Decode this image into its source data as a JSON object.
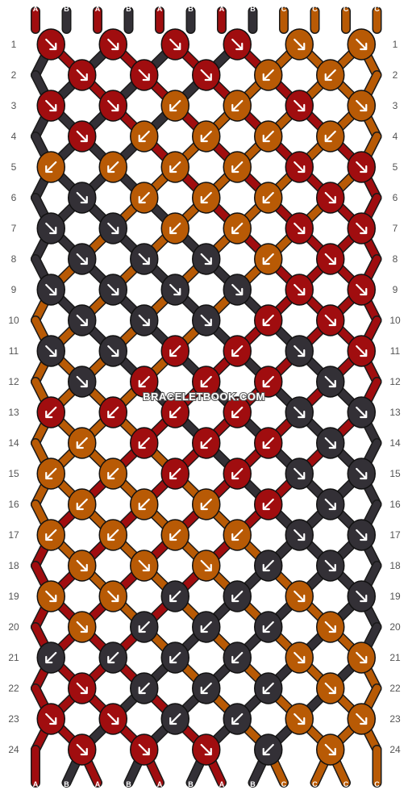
{
  "watermark": "BRACELETBOOK.COM",
  "colors": {
    "A": "#a00d0f",
    "B": "#333036",
    "C": "#b85a05"
  },
  "start_strings": [
    "A",
    "B",
    "A",
    "B",
    "A",
    "B",
    "A",
    "B",
    "C",
    "C",
    "C",
    "C"
  ],
  "end_strings": [
    "A",
    "B",
    "A",
    "B",
    "A",
    "B",
    "A",
    "B",
    "C",
    "C",
    "C",
    "C"
  ],
  "row_labels": [
    "1",
    "2",
    "3",
    "4",
    "5",
    "6",
    "7",
    "8",
    "9",
    "10",
    "11",
    "12",
    "13",
    "14",
    "15",
    "16",
    "17",
    "18",
    "19",
    "20",
    "21",
    "22",
    "23",
    "24"
  ],
  "knot_rows": [
    [
      "A",
      "A",
      "A",
      "A"
    ],
    [
      "A",
      "A",
      "A",
      "C",
      "C"
    ],
    [
      "A",
      "A",
      "C",
      "C"
    ],
    [
      "A",
      "C",
      "C",
      "C",
      "C"
    ],
    [
      "C",
      "C",
      "C",
      "C"
    ],
    [
      "B",
      "C",
      "C",
      "C"
    ],
    [
      "B",
      "B",
      "C",
      "C"
    ],
    [
      "B",
      "B",
      "B",
      "C"
    ],
    [
      "B",
      "B",
      "B",
      "B"
    ],
    [
      "B",
      "B",
      "B",
      "A"
    ],
    [
      "B",
      "B",
      "A",
      "A"
    ],
    [
      "B",
      "A",
      "A",
      "A"
    ],
    [
      "A",
      "A",
      "A",
      "A"
    ],
    [
      "C",
      "A",
      "A",
      "A"
    ],
    [
      "C",
      "C",
      "A",
      "A"
    ],
    [
      "C",
      "C",
      "C",
      "A"
    ],
    [
      "C",
      "C",
      "C",
      "C"
    ],
    [
      "C",
      "C",
      "C",
      "B"
    ],
    [
      "C",
      "C",
      "B",
      "B"
    ],
    [
      "C",
      "B",
      "B",
      "B"
    ],
    [
      "B",
      "B",
      "B",
      "B"
    ],
    [
      "A",
      "B",
      "B",
      "B"
    ],
    [
      "A",
      "A",
      "B",
      "B"
    ],
    [
      "A",
      "A",
      "A",
      "B"
    ]
  ],
  "knot_directions": [
    [
      "dr",
      "dr",
      "dr",
      "dr"
    ],
    [
      "dr",
      "dr",
      "dr",
      "dl",
      "dl"
    ],
    [
      "dr",
      "dr",
      "dl",
      "dl"
    ],
    [
      "dr",
      "dl",
      "dl",
      "dl",
      "dl"
    ],
    [
      "dl",
      "dl",
      "dl",
      "dl"
    ],
    [
      "dr",
      "dl",
      "dl",
      "dl"
    ],
    [
      "dr",
      "dr",
      "dl",
      "dl"
    ],
    [
      "dr",
      "dr",
      "dr",
      "dl"
    ],
    [
      "dr",
      "dr",
      "dr",
      "dr"
    ],
    [
      "dr",
      "dr",
      "dr",
      "dl"
    ],
    [
      "dr",
      "dr",
      "dl",
      "dl"
    ],
    [
      "dr",
      "dl",
      "dl",
      "dl"
    ],
    [
      "dl",
      "dl",
      "dl",
      "dl"
    ],
    [
      "dl",
      "dl",
      "dl",
      "dl"
    ],
    [
      "dl",
      "dl",
      "dl",
      "dl"
    ],
    [
      "dl",
      "dl",
      "dl",
      "dl"
    ],
    [
      "dl",
      "dl",
      "dl",
      "dl"
    ],
    [
      "dr",
      "dr",
      "dr",
      "dl"
    ],
    [
      "dr",
      "dr",
      "dl",
      "dl"
    ],
    [
      "dr",
      "dl",
      "dl",
      "dl"
    ],
    [
      "dl",
      "dl",
      "dl",
      "dl"
    ],
    [
      "dr",
      "dl",
      "dl",
      "dl"
    ],
    [
      "dr",
      "dr",
      "dl",
      "dl"
    ],
    [
      "dr",
      "dr",
      "dr",
      "dl"
    ]
  ]
}
